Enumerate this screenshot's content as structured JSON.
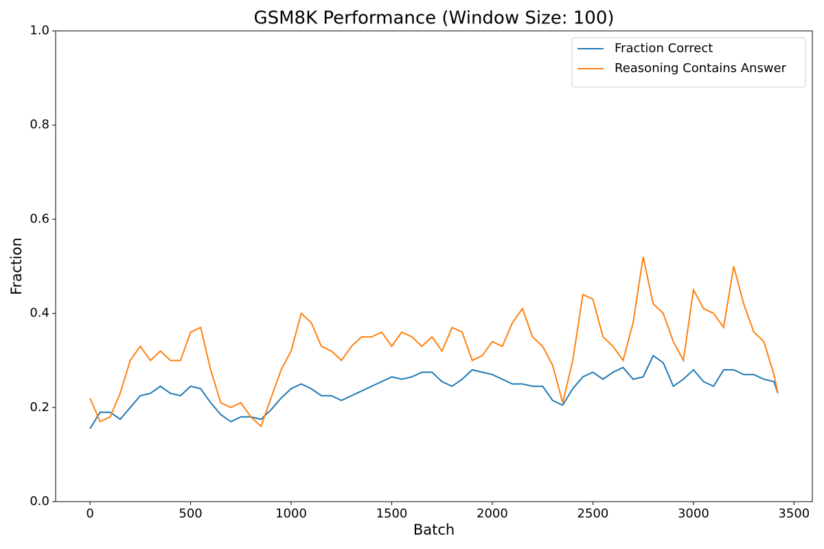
{
  "chart_data": {
    "type": "line",
    "title": "GSM8K Performance (Window Size: 100)",
    "x_label": "Batch",
    "y_label": "Fraction",
    "x": [
      0,
      50,
      100,
      150,
      200,
      250,
      300,
      350,
      400,
      450,
      500,
      550,
      600,
      650,
      700,
      750,
      800,
      850,
      900,
      950,
      1000,
      1050,
      1100,
      1150,
      1200,
      1250,
      1300,
      1350,
      1400,
      1450,
      1500,
      1550,
      1600,
      1650,
      1700,
      1750,
      1800,
      1850,
      1900,
      1950,
      2000,
      2050,
      2100,
      2150,
      2200,
      2250,
      2300,
      2350,
      2400,
      2450,
      2500,
      2550,
      2600,
      2650,
      2700,
      2750,
      2800,
      2850,
      2900,
      2950,
      3000,
      3050,
      3100,
      3150,
      3200,
      3250,
      3300,
      3350,
      3400,
      3420
    ],
    "series": [
      {
        "name": "Fraction Correct",
        "color": "#1f77b4",
        "values": [
          0.155,
          0.19,
          0.19,
          0.175,
          0.2,
          0.225,
          0.23,
          0.245,
          0.23,
          0.225,
          0.245,
          0.24,
          0.21,
          0.185,
          0.17,
          0.18,
          0.18,
          0.175,
          0.195,
          0.22,
          0.24,
          0.25,
          0.24,
          0.225,
          0.225,
          0.215,
          0.225,
          0.235,
          0.245,
          0.255,
          0.265,
          0.26,
          0.265,
          0.275,
          0.275,
          0.255,
          0.245,
          0.26,
          0.28,
          0.275,
          0.27,
          0.26,
          0.25,
          0.25,
          0.245,
          0.245,
          0.215,
          0.205,
          0.24,
          0.265,
          0.275,
          0.26,
          0.275,
          0.285,
          0.26,
          0.265,
          0.31,
          0.295,
          0.245,
          0.26,
          0.28,
          0.255,
          0.245,
          0.28,
          0.28,
          0.27,
          0.27,
          0.26,
          0.255,
          0.23
        ]
      },
      {
        "name": "Reasoning Contains Answer",
        "color": "#ff7f0e",
        "values": [
          0.22,
          0.17,
          0.18,
          0.23,
          0.3,
          0.33,
          0.3,
          0.32,
          0.3,
          0.3,
          0.36,
          0.37,
          0.28,
          0.21,
          0.2,
          0.21,
          0.18,
          0.16,
          0.22,
          0.28,
          0.32,
          0.4,
          0.38,
          0.33,
          0.32,
          0.3,
          0.33,
          0.35,
          0.35,
          0.36,
          0.33,
          0.36,
          0.35,
          0.33,
          0.35,
          0.32,
          0.37,
          0.36,
          0.3,
          0.31,
          0.34,
          0.33,
          0.38,
          0.41,
          0.35,
          0.33,
          0.29,
          0.21,
          0.3,
          0.44,
          0.43,
          0.35,
          0.33,
          0.3,
          0.38,
          0.52,
          0.42,
          0.4,
          0.34,
          0.3,
          0.45,
          0.41,
          0.4,
          0.37,
          0.5,
          0.42,
          0.36,
          0.34,
          0.27,
          0.23
        ]
      }
    ],
    "xlim": [
      -171,
      3591
    ],
    "xticks": [
      0,
      500,
      1000,
      1500,
      2000,
      2500,
      3000,
      3500
    ],
    "ylim": [
      0,
      1
    ],
    "yticks": [
      {
        "value": 0,
        "label": "0.0"
      },
      0.2,
      0.4,
      0.6,
      0.8,
      {
        "value": 1,
        "label": "1.0"
      }
    ],
    "legend": "upper right"
  }
}
